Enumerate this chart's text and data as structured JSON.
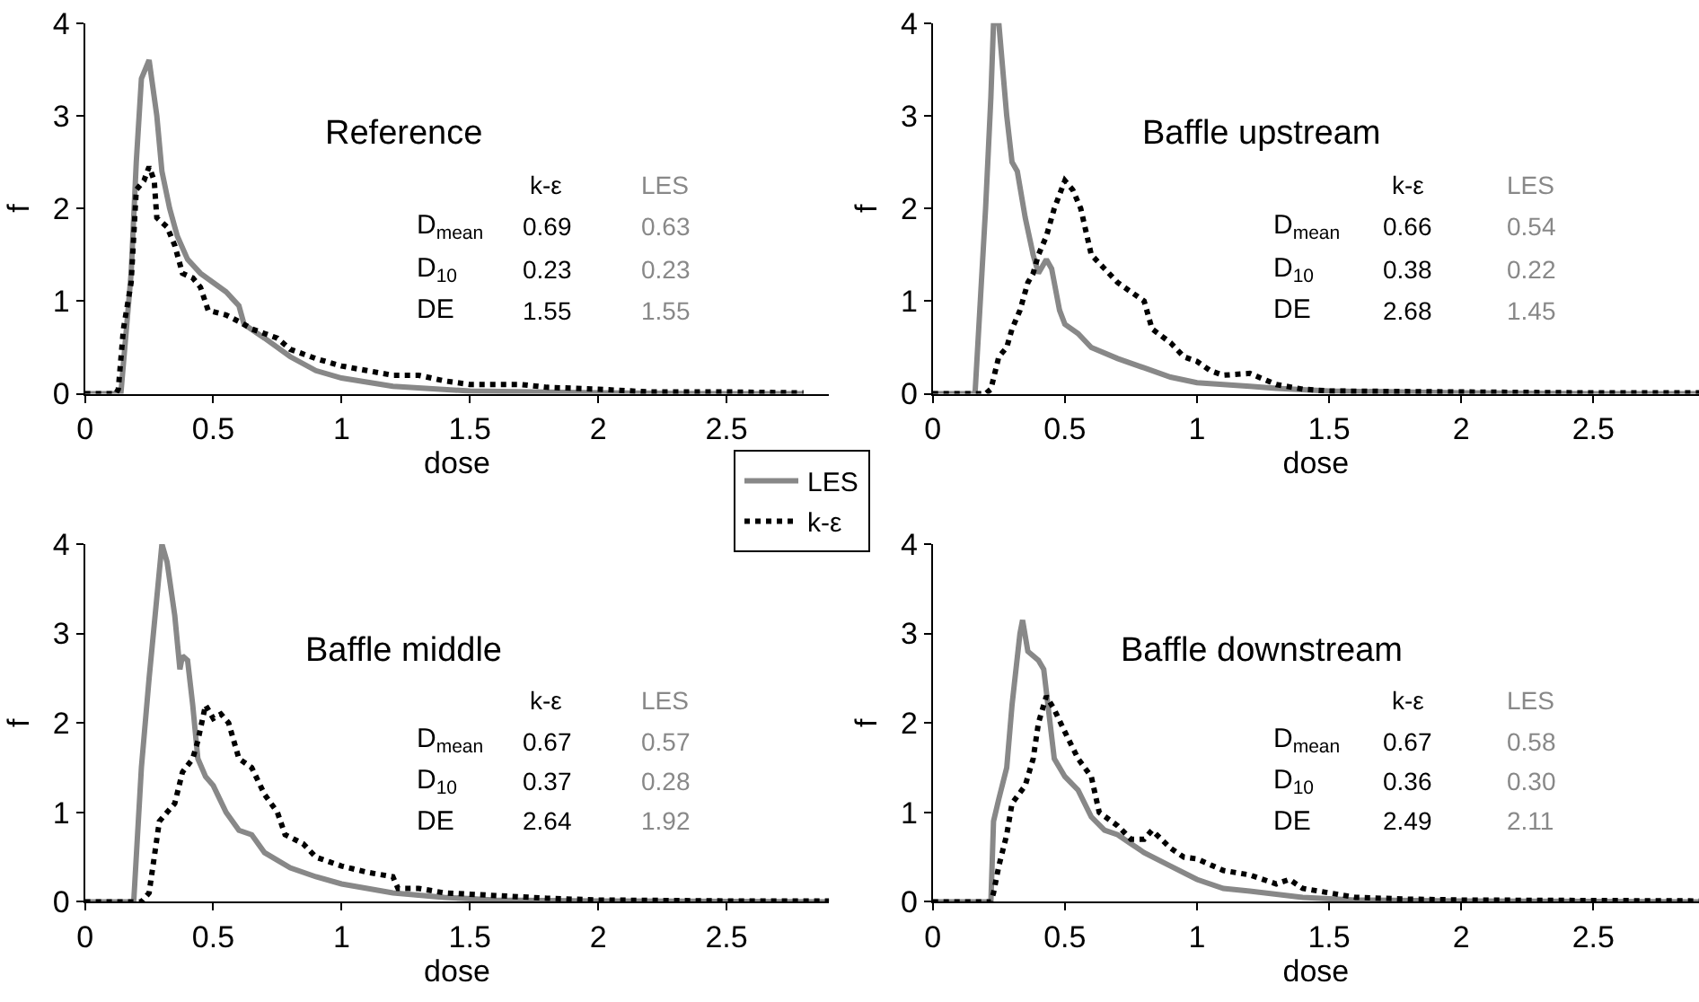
{
  "chart_data": [
    {
      "type": "line",
      "title": "Reference",
      "xlabel": "dose",
      "ylabel": "f",
      "xlim": [
        0,
        2.9
      ],
      "ylim": [
        0,
        4
      ],
      "xticks": [
        0,
        0.5,
        1,
        1.5,
        2,
        2.5
      ],
      "yticks": [
        0,
        1,
        2,
        3,
        4
      ],
      "grid": false,
      "legend": "bottom right",
      "annotations": [
        "k-ε",
        "LES",
        "D$_{mean}$",
        "0.69",
        "0.63",
        "D$_{10}$",
        "0.23",
        "0.23",
        "DE",
        "1.55",
        "1.55"
      ],
      "series": [
        {
          "name": "LES",
          "color": "#888888",
          "line_style": "solid",
          "x": [
            0,
            0.14,
            0.18,
            0.2,
            0.22,
            0.25,
            0.28,
            0.3,
            0.33,
            0.36,
            0.4,
            0.45,
            0.5,
            0.55,
            0.6,
            0.62,
            0.7,
            0.8,
            0.9,
            1.0,
            1.2,
            1.5,
            2.0,
            2.5,
            2.8
          ],
          "values": [
            0,
            0,
            1.3,
            2.5,
            3.4,
            3.6,
            3.0,
            2.4,
            2.0,
            1.7,
            1.45,
            1.3,
            1.2,
            1.1,
            0.95,
            0.75,
            0.6,
            0.4,
            0.25,
            0.17,
            0.08,
            0.03,
            0.01,
            0,
            0
          ]
        },
        {
          "name": "k-ε",
          "color": "#000000",
          "line_style": "dotted",
          "x": [
            0,
            0.12,
            0.13,
            0.15,
            0.18,
            0.2,
            0.23,
            0.25,
            0.27,
            0.28,
            0.32,
            0.35,
            0.38,
            0.42,
            0.45,
            0.48,
            0.55,
            0.6,
            0.65,
            0.7,
            0.75,
            0.8,
            0.9,
            1.0,
            1.1,
            1.2,
            1.3,
            1.4,
            1.5,
            1.7,
            1.8,
            2.0,
            2.2,
            2.5,
            2.8
          ],
          "values": [
            0,
            0,
            0.05,
            0.7,
            1.2,
            2.2,
            2.3,
            2.45,
            2.3,
            1.9,
            1.8,
            1.6,
            1.3,
            1.25,
            1.15,
            0.9,
            0.85,
            0.78,
            0.7,
            0.65,
            0.6,
            0.48,
            0.38,
            0.3,
            0.25,
            0.2,
            0.2,
            0.14,
            0.1,
            0.1,
            0.07,
            0.05,
            0.02,
            0.02,
            0.01
          ]
        }
      ]
    },
    {
      "type": "line",
      "title": "Baffle upstream",
      "xlabel": "dose",
      "ylabel": "f",
      "xlim": [
        0,
        2.9
      ],
      "ylim": [
        0,
        4
      ],
      "xticks": [
        0,
        0.5,
        1,
        1.5,
        2,
        2.5
      ],
      "yticks": [
        0,
        1,
        2,
        3,
        4
      ],
      "grid": false,
      "annotations": [
        "k-ε",
        "LES",
        "D$_{mean}$",
        "0.66",
        "0.54",
        "D$_{10}$",
        "0.38",
        "0.22",
        "DE",
        "2.68",
        "1.45"
      ],
      "series": [
        {
          "color": "#888888",
          "line_style": "solid",
          "x": [
            0,
            0.16,
            0.2,
            0.22,
            0.23,
            0.25,
            0.28,
            0.3,
            0.32,
            0.35,
            0.38,
            0.4,
            0.43,
            0.45,
            0.48,
            0.5,
            0.55,
            0.6,
            0.7,
            0.8,
            0.9,
            1.0,
            1.2,
            1.3,
            1.5,
            2.0,
            2.5,
            2.9
          ],
          "values": [
            0,
            0,
            2.0,
            3.2,
            4.0,
            4.0,
            3.0,
            2.5,
            2.4,
            1.9,
            1.5,
            1.3,
            1.45,
            1.35,
            0.9,
            0.75,
            0.65,
            0.5,
            0.38,
            0.28,
            0.18,
            0.12,
            0.08,
            0.06,
            0.03,
            0.01,
            0,
            0
          ]
        },
        {
          "color": "#000000",
          "line_style": "dotted",
          "x": [
            0,
            0.2,
            0.22,
            0.25,
            0.28,
            0.3,
            0.33,
            0.36,
            0.38,
            0.4,
            0.43,
            0.46,
            0.5,
            0.53,
            0.56,
            0.6,
            0.65,
            0.7,
            0.75,
            0.8,
            0.83,
            0.9,
            0.95,
            1.0,
            1.05,
            1.1,
            1.2,
            1.3,
            1.4,
            1.5,
            2.0,
            2.5,
            2.9
          ],
          "values": [
            0,
            0,
            0.05,
            0.4,
            0.5,
            0.7,
            0.9,
            1.2,
            1.3,
            1.5,
            1.7,
            2.0,
            2.3,
            2.2,
            2.0,
            1.5,
            1.35,
            1.2,
            1.1,
            1.0,
            0.7,
            0.55,
            0.4,
            0.35,
            0.25,
            0.2,
            0.22,
            0.1,
            0.05,
            0.03,
            0.02,
            0.01,
            0.01
          ]
        }
      ]
    },
    {
      "type": "line",
      "title": "Baffle middle",
      "xlabel": "dose",
      "ylabel": "f",
      "xlim": [
        0,
        2.9
      ],
      "ylim": [
        0,
        4
      ],
      "xticks": [
        0,
        0.5,
        1,
        1.5,
        2,
        2.5
      ],
      "yticks": [
        0,
        1,
        2,
        3,
        4
      ],
      "grid": false,
      "annotations": [
        "k-ε",
        "LES",
        "D$_{mean}$",
        "0.67",
        "0.57",
        "D$_{10}$",
        "0.37",
        "0.28",
        "DE",
        "2.64",
        "1.92"
      ],
      "series": [
        {
          "color": "#888888",
          "line_style": "solid",
          "x": [
            0,
            0.19,
            0.22,
            0.25,
            0.28,
            0.3,
            0.32,
            0.35,
            0.37,
            0.38,
            0.4,
            0.42,
            0.44,
            0.47,
            0.5,
            0.55,
            0.6,
            0.65,
            0.7,
            0.8,
            0.9,
            1.0,
            1.1,
            1.2,
            1.4,
            1.6,
            2.0,
            2.9
          ],
          "values": [
            0,
            0,
            1.5,
            2.5,
            3.4,
            4.0,
            3.8,
            3.2,
            2.6,
            2.75,
            2.7,
            2.2,
            1.6,
            1.4,
            1.3,
            1.0,
            0.8,
            0.75,
            0.55,
            0.38,
            0.28,
            0.2,
            0.15,
            0.1,
            0.05,
            0.02,
            0.01,
            0
          ]
        },
        {
          "color": "#000000",
          "line_style": "dotted",
          "x": [
            0,
            0.22,
            0.25,
            0.27,
            0.29,
            0.32,
            0.35,
            0.38,
            0.42,
            0.44,
            0.47,
            0.5,
            0.53,
            0.56,
            0.6,
            0.65,
            0.7,
            0.75,
            0.78,
            0.85,
            0.9,
            0.95,
            1.0,
            1.1,
            1.2,
            1.22,
            1.3,
            1.4,
            1.6,
            1.8,
            2.0,
            2.5,
            2.9
          ],
          "values": [
            0,
            0,
            0.1,
            0.5,
            0.9,
            1.0,
            1.1,
            1.45,
            1.6,
            1.8,
            2.2,
            2.05,
            2.1,
            2.0,
            1.6,
            1.5,
            1.2,
            1.0,
            0.75,
            0.65,
            0.5,
            0.45,
            0.4,
            0.33,
            0.28,
            0.15,
            0.15,
            0.1,
            0.07,
            0.04,
            0.02,
            0.01,
            0.01
          ]
        }
      ]
    },
    {
      "type": "line",
      "title": "Baffle downstream",
      "xlabel": "dose",
      "ylabel": "f",
      "xlim": [
        0,
        2.9
      ],
      "ylim": [
        0,
        4
      ],
      "xticks": [
        0,
        0.5,
        1,
        1.5,
        2,
        2.5
      ],
      "yticks": [
        0,
        1,
        2,
        3,
        4
      ],
      "grid": false,
      "annotations": [
        "k-ε",
        "LES",
        "D$_{mean}$",
        "0.67",
        "0.58",
        "D$_{10}$",
        "0.36",
        "0.30",
        "DE",
        "2.49",
        "2.11"
      ],
      "series": [
        {
          "color": "#888888",
          "line_style": "solid",
          "x": [
            0,
            0.22,
            0.23,
            0.25,
            0.28,
            0.3,
            0.33,
            0.34,
            0.36,
            0.4,
            0.42,
            0.44,
            0.46,
            0.5,
            0.55,
            0.6,
            0.65,
            0.7,
            0.75,
            0.8,
            0.9,
            1.0,
            1.1,
            1.2,
            1.4,
            1.6,
            2.0,
            2.9
          ],
          "values": [
            0,
            0,
            0.9,
            1.15,
            1.5,
            2.2,
            3.0,
            3.15,
            2.8,
            2.7,
            2.6,
            2.1,
            1.6,
            1.4,
            1.25,
            0.95,
            0.8,
            0.75,
            0.65,
            0.55,
            0.4,
            0.25,
            0.15,
            0.12,
            0.05,
            0.02,
            0.01,
            0
          ]
        },
        {
          "color": "#000000",
          "line_style": "dotted",
          "x": [
            0,
            0.22,
            0.23,
            0.25,
            0.28,
            0.3,
            0.35,
            0.38,
            0.4,
            0.43,
            0.46,
            0.5,
            0.55,
            0.6,
            0.63,
            0.7,
            0.75,
            0.8,
            0.83,
            0.9,
            0.95,
            1.0,
            1.1,
            1.2,
            1.3,
            1.35,
            1.4,
            1.5,
            1.6,
            1.8,
            2.0,
            2.9
          ],
          "values": [
            0,
            0,
            0.1,
            0.4,
            0.75,
            1.1,
            1.3,
            1.6,
            2.0,
            2.3,
            2.15,
            1.9,
            1.6,
            1.4,
            1.0,
            0.85,
            0.7,
            0.7,
            0.8,
            0.6,
            0.5,
            0.48,
            0.35,
            0.3,
            0.2,
            0.25,
            0.15,
            0.1,
            0.05,
            0.03,
            0.02,
            0.01
          ]
        }
      ]
    }
  ]
}
